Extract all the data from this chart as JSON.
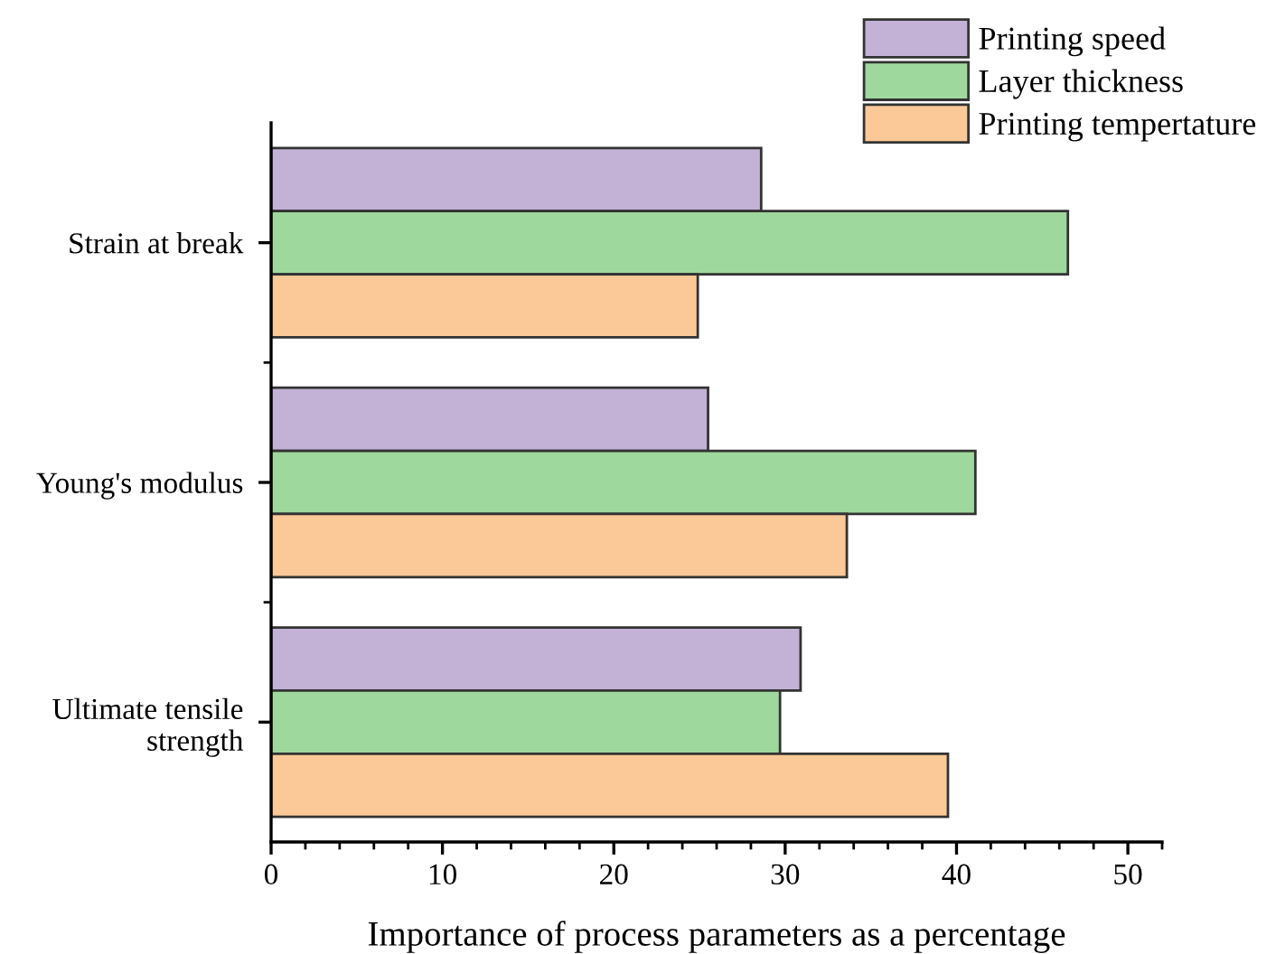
{
  "chart_data": {
    "type": "bar",
    "orientation": "horizontal",
    "categories": [
      "Strain at break",
      "Young's modulus",
      "Ultimate tensile\nstrength"
    ],
    "xlabel": "Importance of process parameters as a percentage",
    "xlim": [
      0,
      52
    ],
    "xticks": [
      0,
      10,
      20,
      30,
      40,
      50
    ],
    "series": [
      {
        "name": "Printing speed",
        "color": "#c3b1d6",
        "values": [
          28.6,
          25.5,
          30.9
        ]
      },
      {
        "name": "Layer thickness",
        "color": "#9fd89c",
        "values": [
          46.5,
          41.1,
          29.7
        ]
      },
      {
        "name": "Printing tempertature",
        "color": "#fbc897",
        "values": [
          24.9,
          33.6,
          39.5
        ]
      }
    ],
    "legend": "top right",
    "grid": false
  }
}
